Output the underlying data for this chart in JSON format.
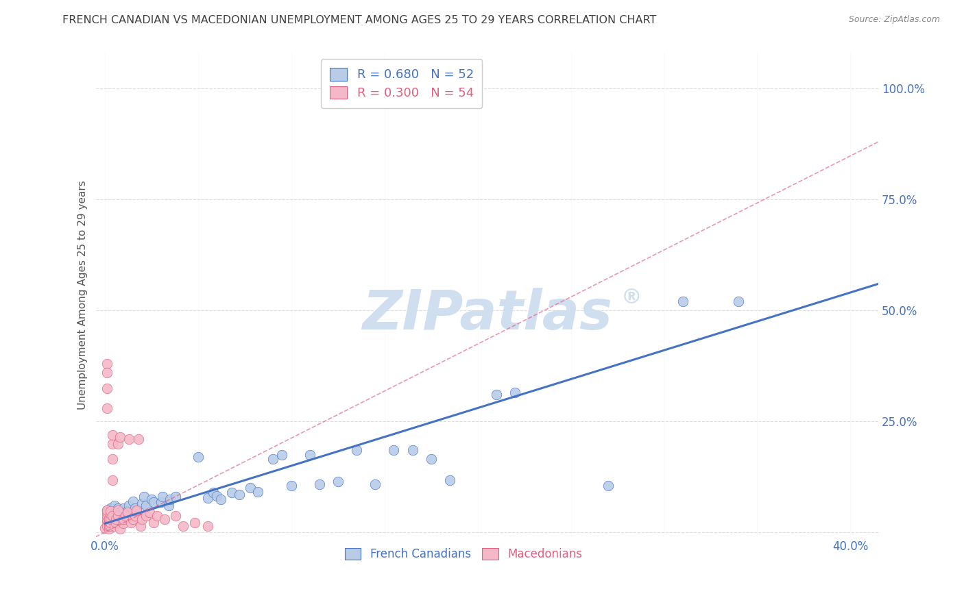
{
  "title": "FRENCH CANADIAN VS MACEDONIAN UNEMPLOYMENT AMONG AGES 25 TO 29 YEARS CORRELATION CHART",
  "source": "Source: ZipAtlas.com",
  "ylabel": "Unemployment Among Ages 25 to 29 years",
  "xlim": [
    -0.005,
    0.415
  ],
  "ylim": [
    -0.01,
    1.08
  ],
  "xticks": [
    0.0,
    0.05,
    0.1,
    0.15,
    0.2,
    0.25,
    0.3,
    0.35,
    0.4
  ],
  "yticks": [
    0.0,
    0.25,
    0.5,
    0.75,
    1.0
  ],
  "blue_color": "#4472c4",
  "pink_color": "#e06080",
  "blue_fill": "#b8cce8",
  "pink_fill": "#f4b8c8",
  "blue_scatter": [
    [
      0.001,
      0.05
    ],
    [
      0.002,
      0.03
    ],
    [
      0.003,
      0.055
    ],
    [
      0.005,
      0.04
    ],
    [
      0.005,
      0.06
    ],
    [
      0.006,
      0.025
    ],
    [
      0.007,
      0.055
    ],
    [
      0.008,
      0.045
    ],
    [
      0.01,
      0.03
    ],
    [
      0.01,
      0.055
    ],
    [
      0.012,
      0.048
    ],
    [
      0.013,
      0.06
    ],
    [
      0.014,
      0.04
    ],
    [
      0.015,
      0.07
    ],
    [
      0.016,
      0.055
    ],
    [
      0.017,
      0.048
    ],
    [
      0.02,
      0.065
    ],
    [
      0.021,
      0.08
    ],
    [
      0.022,
      0.06
    ],
    [
      0.025,
      0.075
    ],
    [
      0.026,
      0.068
    ],
    [
      0.03,
      0.068
    ],
    [
      0.031,
      0.08
    ],
    [
      0.034,
      0.06
    ],
    [
      0.035,
      0.075
    ],
    [
      0.038,
      0.08
    ],
    [
      0.05,
      0.17
    ],
    [
      0.055,
      0.078
    ],
    [
      0.058,
      0.09
    ],
    [
      0.06,
      0.082
    ],
    [
      0.062,
      0.075
    ],
    [
      0.068,
      0.09
    ],
    [
      0.072,
      0.085
    ],
    [
      0.078,
      0.1
    ],
    [
      0.082,
      0.092
    ],
    [
      0.09,
      0.165
    ],
    [
      0.095,
      0.175
    ],
    [
      0.1,
      0.105
    ],
    [
      0.11,
      0.175
    ],
    [
      0.115,
      0.108
    ],
    [
      0.125,
      0.115
    ],
    [
      0.135,
      0.185
    ],
    [
      0.145,
      0.108
    ],
    [
      0.155,
      0.185
    ],
    [
      0.165,
      0.185
    ],
    [
      0.175,
      0.165
    ],
    [
      0.185,
      0.118
    ],
    [
      0.21,
      0.31
    ],
    [
      0.22,
      0.315
    ],
    [
      0.27,
      0.105
    ],
    [
      0.31,
      0.52
    ],
    [
      0.34,
      0.52
    ]
  ],
  "pink_scatter": [
    [
      0.0,
      0.01
    ],
    [
      0.001,
      0.025
    ],
    [
      0.001,
      0.015
    ],
    [
      0.001,
      0.03
    ],
    [
      0.001,
      0.038
    ],
    [
      0.001,
      0.045
    ],
    [
      0.001,
      0.05
    ],
    [
      0.001,
      0.38
    ],
    [
      0.001,
      0.36
    ],
    [
      0.001,
      0.325
    ],
    [
      0.001,
      0.28
    ],
    [
      0.002,
      0.008
    ],
    [
      0.002,
      0.015
    ],
    [
      0.002,
      0.022
    ],
    [
      0.002,
      0.03
    ],
    [
      0.003,
      0.015
    ],
    [
      0.003,
      0.022
    ],
    [
      0.003,
      0.03
    ],
    [
      0.003,
      0.042
    ],
    [
      0.003,
      0.048
    ],
    [
      0.004,
      0.2
    ],
    [
      0.004,
      0.22
    ],
    [
      0.004,
      0.165
    ],
    [
      0.004,
      0.118
    ],
    [
      0.004,
      0.038
    ],
    [
      0.005,
      0.015
    ],
    [
      0.006,
      0.022
    ],
    [
      0.006,
      0.03
    ],
    [
      0.007,
      0.038
    ],
    [
      0.007,
      0.05
    ],
    [
      0.007,
      0.2
    ],
    [
      0.008,
      0.215
    ],
    [
      0.008,
      0.008
    ],
    [
      0.01,
      0.02
    ],
    [
      0.01,
      0.03
    ],
    [
      0.011,
      0.038
    ],
    [
      0.012,
      0.045
    ],
    [
      0.013,
      0.21
    ],
    [
      0.014,
      0.022
    ],
    [
      0.015,
      0.03
    ],
    [
      0.016,
      0.038
    ],
    [
      0.017,
      0.05
    ],
    [
      0.018,
      0.21
    ],
    [
      0.019,
      0.015
    ],
    [
      0.02,
      0.03
    ],
    [
      0.022,
      0.038
    ],
    [
      0.024,
      0.045
    ],
    [
      0.026,
      0.022
    ],
    [
      0.028,
      0.038
    ],
    [
      0.032,
      0.03
    ],
    [
      0.038,
      0.038
    ],
    [
      0.042,
      0.015
    ],
    [
      0.048,
      0.022
    ],
    [
      0.055,
      0.015
    ]
  ],
  "blue_line_x": [
    0.0,
    0.415
  ],
  "blue_line_y": [
    0.02,
    0.56
  ],
  "pink_line_x": [
    -0.005,
    0.415
  ],
  "pink_line_y": [
    -0.01,
    0.88
  ],
  "watermark": "ZIPatlas",
  "watermark_superscript": "®",
  "watermark_color": "#d0dff0",
  "background_color": "#ffffff",
  "grid_color": "#dddddd",
  "tick_color": "#4472c4",
  "title_color": "#404040",
  "title_fontsize": 11.5,
  "axis_label_color": "#555555",
  "axis_label_fontsize": 11
}
